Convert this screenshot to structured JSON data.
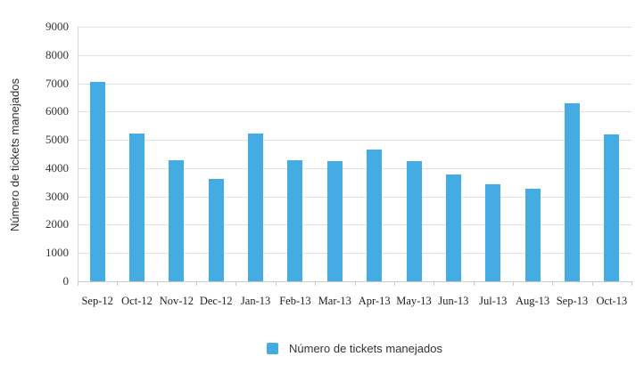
{
  "chart_data": {
    "type": "bar",
    "title": "",
    "xlabel": "",
    "ylabel": "Número de tickets manejados",
    "categories": [
      "Sep-12",
      "Oct-12",
      "Nov-12",
      "Dec-12",
      "Jan-13",
      "Feb-13",
      "Mar-13",
      "Apr-13",
      "May-13",
      "Jun-13",
      "Jul-13",
      "Aug-13",
      "Sep-13",
      "Oct-13"
    ],
    "series": [
      {
        "name": "Número de tickets manejados",
        "values": [
          7050,
          5210,
          4280,
          3630,
          5210,
          4280,
          4260,
          4650,
          4260,
          3780,
          3430,
          3260,
          6290,
          5200
        ]
      }
    ],
    "ylim": [
      0,
      9000
    ],
    "ytick_step": 1000,
    "grid": "horizontal",
    "legend_position": "bottom-center",
    "bar_color": "#45ACE3"
  },
  "colors": {
    "bar": "#45ACE3",
    "gridline": "#e0e0e0",
    "axis_line": "#c9c9c9",
    "text": "#333333",
    "background": "#ffffff"
  }
}
